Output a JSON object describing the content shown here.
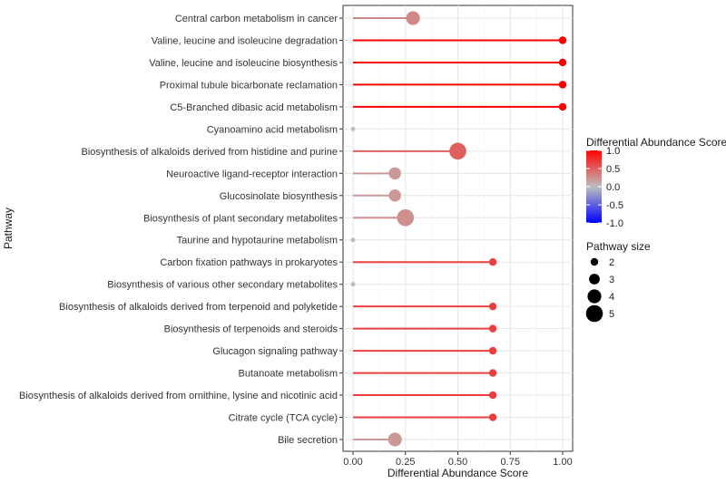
{
  "chart_data": {
    "type": "lollipop",
    "title": "",
    "xlabel": "Differential Abundance Score",
    "ylabel": "Pathway",
    "xlim": [
      -0.05,
      1.05
    ],
    "xticks": [
      0.0,
      0.25,
      0.5,
      0.75,
      1.0
    ],
    "xtick_labels": [
      "0.00",
      "0.25",
      "0.50",
      "0.75",
      "1.00"
    ],
    "grid": true,
    "pathways": [
      {
        "name": "Central carbon metabolism in cancer",
        "score": 0.286,
        "size": 4
      },
      {
        "name": "Valine, leucine and isoleucine degradation",
        "score": 1.0,
        "size": 2
      },
      {
        "name": "Valine, leucine and isoleucine biosynthesis",
        "score": 1.0,
        "size": 2
      },
      {
        "name": "Proximal tubule bicarbonate reclamation",
        "score": 1.0,
        "size": 2
      },
      {
        "name": "C5-Branched dibasic acid metabolism",
        "score": 1.0,
        "size": 2
      },
      {
        "name": "Cyanoamino acid metabolism",
        "score": 0.0,
        "size": 1
      },
      {
        "name": "Biosynthesis of alkaloids derived from histidine and purine",
        "score": 0.5,
        "size": 5
      },
      {
        "name": "Neuroactive ligand-receptor interaction",
        "score": 0.2,
        "size": 3.5
      },
      {
        "name": "Glucosinolate biosynthesis",
        "score": 0.2,
        "size": 3.5
      },
      {
        "name": "Biosynthesis of plant secondary metabolites",
        "score": 0.25,
        "size": 5
      },
      {
        "name": "Taurine and hypotaurine metabolism",
        "score": 0.0,
        "size": 1
      },
      {
        "name": "Carbon fixation pathways in prokaryotes",
        "score": 0.667,
        "size": 2
      },
      {
        "name": "Biosynthesis of various other secondary metabolites",
        "score": 0.0,
        "size": 1
      },
      {
        "name": "Biosynthesis of alkaloids derived from terpenoid and polyketide",
        "score": 0.667,
        "size": 2
      },
      {
        "name": "Biosynthesis of terpenoids and steroids",
        "score": 0.667,
        "size": 2
      },
      {
        "name": "Glucagon signaling pathway",
        "score": 0.667,
        "size": 2
      },
      {
        "name": "Butanoate metabolism",
        "score": 0.667,
        "size": 2
      },
      {
        "name": "Biosynthesis of alkaloids derived from ornithine, lysine and nicotinic acid",
        "score": 0.667,
        "size": 2
      },
      {
        "name": "Citrate cycle (TCA cycle)",
        "score": 0.667,
        "size": 2
      },
      {
        "name": "Bile secretion",
        "score": 0.2,
        "size": 4
      }
    ],
    "color_legend": {
      "title": "Differential Abundance Score",
      "stops": [
        {
          "value": 1.0,
          "color": "#ff0000"
        },
        {
          "value": 0.0,
          "color": "#bebebe"
        },
        {
          "value": -1.0,
          "color": "#0000ff"
        }
      ],
      "labels": [
        "1.0",
        "0.5",
        "0.0",
        "-0.5",
        "-1.0"
      ],
      "label_values": [
        1.0,
        0.5,
        0.0,
        -0.5,
        -1.0
      ]
    },
    "size_legend": {
      "title": "Pathway size",
      "values": [
        2,
        3,
        4,
        5
      ],
      "labels": [
        "2",
        "3",
        "4",
        "5"
      ]
    }
  }
}
